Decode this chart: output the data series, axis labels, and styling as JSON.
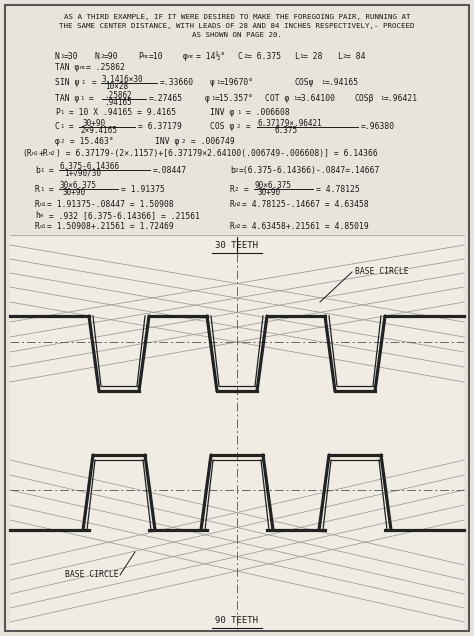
{
  "bg": "#e8e4dc",
  "border": "#444444",
  "tc": "#1a1a1a",
  "diag_bg": "#dedad2",
  "title_lines": [
    "AS A THIRD EXAMPLE, IF IT WERE DESIRED TO MAKE THE FOREGOING PAIR, RUNNING AT",
    "THE SAME CENTER DISTANCE, WITH LEADS OF 28 AND 84 INCHES RESPECTIVELY,- PROCEED",
    "AS SHOWN ON PAGE 20."
  ],
  "fig_w": 4.74,
  "fig_h": 6.36,
  "dpi": 100
}
